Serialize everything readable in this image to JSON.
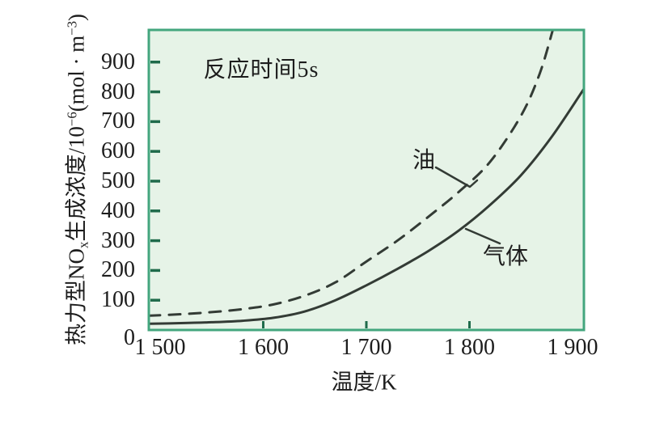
{
  "chart_data": {
    "type": "line",
    "note": "反应时间5s",
    "x_axis": {
      "label": "温度/K",
      "tick_labels": [
        "1 500",
        "1 600",
        "1 700",
        "1 800",
        "1 900"
      ],
      "tick_values": [
        1500,
        1600,
        1700,
        1800,
        1900
      ],
      "ticks_with_marks": [
        1600,
        1700,
        1800
      ],
      "range": [
        1489,
        1911
      ]
    },
    "y_axis": {
      "label_parts": [
        {
          "type": "text",
          "text": "热力型NO"
        },
        {
          "type": "sub",
          "text": "x"
        },
        {
          "type": "text",
          "text": "生成浓度/10"
        },
        {
          "type": "sup",
          "text": "−6"
        },
        {
          "type": "text",
          "text": "(mol · m"
        },
        {
          "type": "sup",
          "text": "−3"
        },
        {
          "type": "text",
          "text": ")"
        }
      ],
      "tick_labels": [
        "0",
        "100",
        "200",
        "300",
        "400",
        "500",
        "600",
        "700",
        "800",
        "900"
      ],
      "tick_values": [
        0,
        100,
        200,
        300,
        400,
        500,
        600,
        700,
        800,
        900
      ],
      "range": [
        0,
        1008
      ]
    },
    "series": [
      {
        "name": "油",
        "style": "dashed",
        "points": [
          [
            1489,
            48
          ],
          [
            1520,
            53
          ],
          [
            1550,
            60
          ],
          [
            1580,
            70
          ],
          [
            1610,
            86
          ],
          [
            1640,
            115
          ],
          [
            1670,
            160
          ],
          [
            1700,
            230
          ],
          [
            1730,
            300
          ],
          [
            1760,
            380
          ],
          [
            1790,
            465
          ],
          [
            1820,
            565
          ],
          [
            1850,
            720
          ],
          [
            1868,
            860
          ],
          [
            1881,
            1010
          ]
        ],
        "label_leader": [
          [
            539,
            207
          ],
          [
            581,
            231
          ],
          [
            590,
            223
          ]
        ]
      },
      {
        "name": "气体",
        "style": "solid",
        "points": [
          [
            1489,
            21
          ],
          [
            1520,
            23
          ],
          [
            1550,
            26
          ],
          [
            1580,
            31
          ],
          [
            1610,
            41
          ],
          [
            1640,
            62
          ],
          [
            1670,
            100
          ],
          [
            1700,
            150
          ],
          [
            1730,
            205
          ],
          [
            1760,
            265
          ],
          [
            1790,
            335
          ],
          [
            1820,
            420
          ],
          [
            1850,
            520
          ],
          [
            1880,
            650
          ],
          [
            1911,
            810
          ]
        ],
        "label_leader": [
          [
            576,
            283
          ],
          [
            618,
            301
          ]
        ]
      }
    ],
    "colors": {
      "plot_fill": "#e6f3e7",
      "plot_border": "#43a67e",
      "tick_mark": "#1f6b4b",
      "curve": "#333b35",
      "text": "#1d1d1d"
    }
  }
}
